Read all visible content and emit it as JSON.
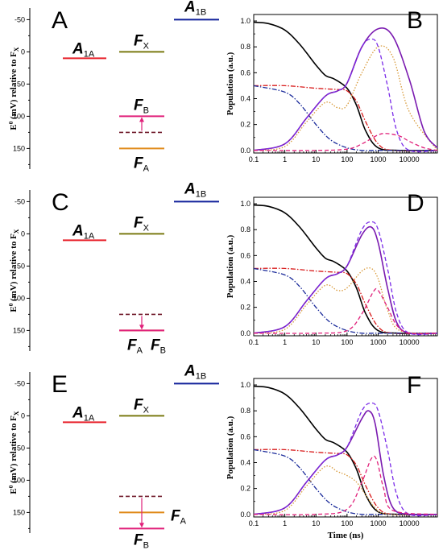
{
  "energy_axis": {
    "ylabel": "E⁰ (mV) relative to Fₓ",
    "ylabel_main": "E",
    "ylabel_sup": "0",
    "ylabel_rest": " (mV) relative to F",
    "ylabel_sub": "X",
    "ticks": [
      "-50",
      "0",
      "50",
      "100",
      "150"
    ],
    "tick_values": [
      -50,
      0,
      50,
      100,
      150
    ],
    "range": [
      -68,
      182
    ]
  },
  "colors": {
    "A1A": "#e8202a",
    "A1B": "#10209a",
    "FX": "#7a7a12",
    "FA": "#e08a1a",
    "FB": "#e0207a",
    "dashed": "#701a2a",
    "arrow": "#e0207a",
    "black": "#000000",
    "purple": "#7a1ab0",
    "purple_dash": "#7a2ae8",
    "red_dashdot": "#d81a1a",
    "blue_dashdot": "#1a2a9a",
    "orange_dot": "#d89a3a",
    "pink_dash": "#e0207a"
  },
  "energy_panels": [
    {
      "letter": "A",
      "levels": [
        {
          "name": "A",
          "sub": "1A",
          "energy": 10,
          "color_key": "A1A"
        },
        {
          "name": "A",
          "sub": "1B",
          "energy": -50,
          "color_key": "A1B"
        },
        {
          "name": "F",
          "sub": "X",
          "energy": 0,
          "color_key": "FX"
        },
        {
          "name": "F",
          "sub": "B",
          "energy": 100,
          "color_key": "FB"
        },
        {
          "name": "F",
          "sub": "A",
          "energy": 150,
          "color_key": "FA"
        }
      ],
      "dashed_level": 125,
      "arrow": {
        "from": 125,
        "to": 100
      }
    },
    {
      "letter": "C",
      "levels": [
        {
          "name": "A",
          "sub": "1A",
          "energy": 10,
          "color_key": "A1A"
        },
        {
          "name": "A",
          "sub": "1B",
          "energy": -50,
          "color_key": "A1B"
        },
        {
          "name": "F",
          "sub": "X",
          "energy": 0,
          "color_key": "FX"
        },
        {
          "name": "F",
          "sub": "A",
          "energy": 150,
          "color_key": "FA"
        },
        {
          "name": "F",
          "sub": "B",
          "energy": 150,
          "color_key": "FB"
        }
      ],
      "dashed_level": 125,
      "arrow": {
        "from": 125,
        "to": 150
      }
    },
    {
      "letter": "E",
      "levels": [
        {
          "name": "A",
          "sub": "1A",
          "energy": 10,
          "color_key": "A1A"
        },
        {
          "name": "A",
          "sub": "1B",
          "energy": -50,
          "color_key": "A1B"
        },
        {
          "name": "F",
          "sub": "X",
          "energy": 0,
          "color_key": "FX"
        },
        {
          "name": "F",
          "sub": "A",
          "energy": 150,
          "color_key": "FA"
        },
        {
          "name": "F",
          "sub": "B",
          "energy": 175,
          "color_key": "FB"
        }
      ],
      "dashed_level": 125,
      "arrow": {
        "from": 125,
        "to": 175
      }
    }
  ],
  "chart_data": [
    {
      "type": "line",
      "panel": "B",
      "xlabel": "",
      "ylabel": "Population (a.u.)",
      "xscale": "log",
      "xlim": [
        0.1,
        80000
      ],
      "ylim": [
        -0.02,
        1.05
      ],
      "x_ticks": [
        "0.1",
        "1",
        "10",
        "100",
        "1000",
        "10000"
      ],
      "y_ticks": [
        "0.0",
        "0.2",
        "0.4",
        "0.6",
        "0.8",
        "1.0"
      ],
      "series": [
        {
          "style": "solid",
          "color_key": "black",
          "x": [
            0.1,
            0.3,
            1,
            3,
            10,
            20,
            40,
            100,
            200,
            400,
            1000,
            5000,
            80000
          ],
          "y": [
            0.99,
            0.98,
            0.93,
            0.82,
            0.66,
            0.58,
            0.55,
            0.48,
            0.35,
            0.15,
            0.02,
            0.0,
            0.0
          ]
        },
        {
          "style": "dashdot",
          "color_key": "red_dashdot",
          "x": [
            0.1,
            1,
            10,
            50,
            100,
            200,
            400,
            1000,
            3000,
            80000
          ],
          "y": [
            0.5,
            0.5,
            0.48,
            0.47,
            0.46,
            0.38,
            0.22,
            0.05,
            0.0,
            0.0
          ]
        },
        {
          "style": "dashdot",
          "color_key": "blue_dashdot",
          "x": [
            0.1,
            1,
            3,
            10,
            30,
            100,
            300,
            1000,
            80000
          ],
          "y": [
            0.5,
            0.45,
            0.36,
            0.2,
            0.08,
            0.02,
            0.0,
            0.0,
            0.0
          ]
        },
        {
          "style": "dotted",
          "color_key": "orange_dot",
          "x": [
            0.1,
            1,
            5,
            20,
            50,
            100,
            300,
            1000,
            3000,
            10000,
            80000
          ],
          "y": [
            0.0,
            0.03,
            0.22,
            0.37,
            0.33,
            0.35,
            0.6,
            0.8,
            0.72,
            0.3,
            0.0
          ]
        },
        {
          "style": "solid",
          "color_key": "purple",
          "x": [
            0.1,
            1,
            5,
            20,
            50,
            100,
            300,
            1000,
            3000,
            10000,
            30000,
            80000
          ],
          "y": [
            0.0,
            0.05,
            0.25,
            0.42,
            0.46,
            0.52,
            0.8,
            0.94,
            0.88,
            0.55,
            0.15,
            0.02
          ]
        },
        {
          "style": "dashed",
          "color_key": "purple_dash",
          "x": [
            0.1,
            1,
            5,
            20,
            50,
            100,
            300,
            600,
            1000,
            2000,
            4000,
            10000,
            80000
          ],
          "y": [
            0.0,
            0.05,
            0.25,
            0.42,
            0.46,
            0.52,
            0.8,
            0.86,
            0.8,
            0.5,
            0.15,
            0.0,
            0.0
          ]
        },
        {
          "style": "dashed",
          "color_key": "pink_dash",
          "x": [
            0.1,
            10,
            100,
            300,
            1000,
            2000,
            5000,
            10000,
            30000,
            80000
          ],
          "y": [
            0.0,
            0.0,
            0.01,
            0.05,
            0.12,
            0.13,
            0.11,
            0.07,
            0.02,
            0.0
          ]
        }
      ]
    },
    {
      "type": "line",
      "panel": "D",
      "xlabel": "",
      "ylabel": "Population (a.u.)",
      "xscale": "log",
      "xlim": [
        0.1,
        80000
      ],
      "ylim": [
        -0.02,
        1.05
      ],
      "x_ticks": [
        "0.1",
        "1",
        "10",
        "100",
        "1000",
        "10000"
      ],
      "y_ticks": [
        "0.0",
        "0.2",
        "0.4",
        "0.6",
        "0.8",
        "1.0"
      ],
      "series": [
        {
          "style": "solid",
          "color_key": "black",
          "x": [
            0.1,
            0.3,
            1,
            3,
            10,
            20,
            40,
            100,
            200,
            400,
            1000,
            5000,
            80000
          ],
          "y": [
            0.99,
            0.98,
            0.93,
            0.82,
            0.66,
            0.58,
            0.55,
            0.48,
            0.35,
            0.15,
            0.02,
            0.0,
            0.0
          ]
        },
        {
          "style": "dashdot",
          "color_key": "red_dashdot",
          "x": [
            0.1,
            1,
            10,
            50,
            100,
            200,
            400,
            1000,
            3000,
            80000
          ],
          "y": [
            0.5,
            0.5,
            0.48,
            0.47,
            0.46,
            0.38,
            0.22,
            0.05,
            0.0,
            0.0
          ]
        },
        {
          "style": "dashdot",
          "color_key": "blue_dashdot",
          "x": [
            0.1,
            1,
            3,
            10,
            30,
            100,
            300,
            1000,
            80000
          ],
          "y": [
            0.5,
            0.45,
            0.36,
            0.2,
            0.08,
            0.02,
            0.0,
            0.0,
            0.0
          ]
        },
        {
          "style": "dotted",
          "color_key": "orange_dot",
          "x": [
            0.1,
            1,
            5,
            20,
            50,
            100,
            300,
            600,
            1000,
            2000,
            5000,
            80000
          ],
          "y": [
            0.0,
            0.03,
            0.22,
            0.37,
            0.33,
            0.35,
            0.48,
            0.5,
            0.42,
            0.18,
            0.02,
            0.0
          ]
        },
        {
          "style": "solid",
          "color_key": "purple",
          "x": [
            0.1,
            1,
            5,
            20,
            50,
            100,
            300,
            600,
            1000,
            2000,
            4000,
            10000,
            80000
          ],
          "y": [
            0.0,
            0.05,
            0.25,
            0.42,
            0.46,
            0.52,
            0.76,
            0.82,
            0.7,
            0.35,
            0.08,
            0.0,
            0.0
          ]
        },
        {
          "style": "dashed",
          "color_key": "purple_dash",
          "x": [
            0.1,
            1,
            5,
            20,
            50,
            100,
            300,
            600,
            1000,
            2000,
            4000,
            10000,
            80000
          ],
          "y": [
            0.0,
            0.05,
            0.25,
            0.42,
            0.46,
            0.52,
            0.8,
            0.86,
            0.8,
            0.5,
            0.15,
            0.0,
            0.0
          ]
        },
        {
          "style": "dashed",
          "color_key": "pink_dash",
          "x": [
            0.1,
            10,
            100,
            300,
            700,
            1000,
            2000,
            4000,
            10000,
            80000
          ],
          "y": [
            0.0,
            0.0,
            0.02,
            0.15,
            0.32,
            0.33,
            0.2,
            0.06,
            0.0,
            0.0
          ]
        }
      ]
    },
    {
      "type": "line",
      "panel": "F",
      "xlabel": "Time (ns)",
      "ylabel": "Population (a.u.)",
      "xscale": "log",
      "xlim": [
        0.1,
        80000
      ],
      "ylim": [
        -0.02,
        1.05
      ],
      "x_ticks": [
        "0.1",
        "1",
        "10",
        "100",
        "1000",
        "10000"
      ],
      "y_ticks": [
        "0.0",
        "0.2",
        "0.4",
        "0.6",
        "0.8",
        "1.0"
      ],
      "series": [
        {
          "style": "solid",
          "color_key": "black",
          "x": [
            0.1,
            0.3,
            1,
            3,
            10,
            20,
            40,
            100,
            200,
            400,
            1000,
            5000,
            80000
          ],
          "y": [
            0.99,
            0.98,
            0.93,
            0.82,
            0.66,
            0.58,
            0.55,
            0.48,
            0.35,
            0.15,
            0.02,
            0.0,
            0.0
          ]
        },
        {
          "style": "dashdot",
          "color_key": "red_dashdot",
          "x": [
            0.1,
            1,
            10,
            50,
            100,
            200,
            400,
            1000,
            3000,
            80000
          ],
          "y": [
            0.5,
            0.5,
            0.48,
            0.47,
            0.46,
            0.38,
            0.22,
            0.05,
            0.0,
            0.0
          ]
        },
        {
          "style": "dashdot",
          "color_key": "blue_dashdot",
          "x": [
            0.1,
            1,
            3,
            10,
            30,
            100,
            300,
            1000,
            80000
          ],
          "y": [
            0.5,
            0.45,
            0.36,
            0.2,
            0.08,
            0.02,
            0.0,
            0.0,
            0.0
          ]
        },
        {
          "style": "dotted",
          "color_key": "orange_dot",
          "x": [
            0.1,
            1,
            5,
            20,
            50,
            100,
            200,
            400,
            800,
            2000,
            80000
          ],
          "y": [
            0.0,
            0.03,
            0.22,
            0.37,
            0.33,
            0.3,
            0.25,
            0.15,
            0.05,
            0.0,
            0.0
          ]
        },
        {
          "style": "solid",
          "color_key": "purple",
          "x": [
            0.1,
            1,
            5,
            20,
            50,
            100,
            300,
            500,
            800,
            1500,
            3000,
            10000,
            80000
          ],
          "y": [
            0.0,
            0.05,
            0.25,
            0.42,
            0.46,
            0.52,
            0.74,
            0.8,
            0.7,
            0.3,
            0.05,
            0.0,
            0.0
          ]
        },
        {
          "style": "dashed",
          "color_key": "purple_dash",
          "x": [
            0.1,
            1,
            5,
            20,
            50,
            100,
            300,
            600,
            1000,
            2000,
            4000,
            10000,
            80000
          ],
          "y": [
            0.0,
            0.05,
            0.25,
            0.42,
            0.46,
            0.52,
            0.8,
            0.86,
            0.8,
            0.5,
            0.15,
            0.0,
            0.0
          ]
        },
        {
          "style": "dashed",
          "color_key": "pink_dash",
          "x": [
            0.1,
            10,
            100,
            300,
            600,
            900,
            1500,
            3000,
            80000
          ],
          "y": [
            0.0,
            0.0,
            0.04,
            0.25,
            0.43,
            0.42,
            0.2,
            0.03,
            0.0
          ]
        }
      ]
    }
  ]
}
